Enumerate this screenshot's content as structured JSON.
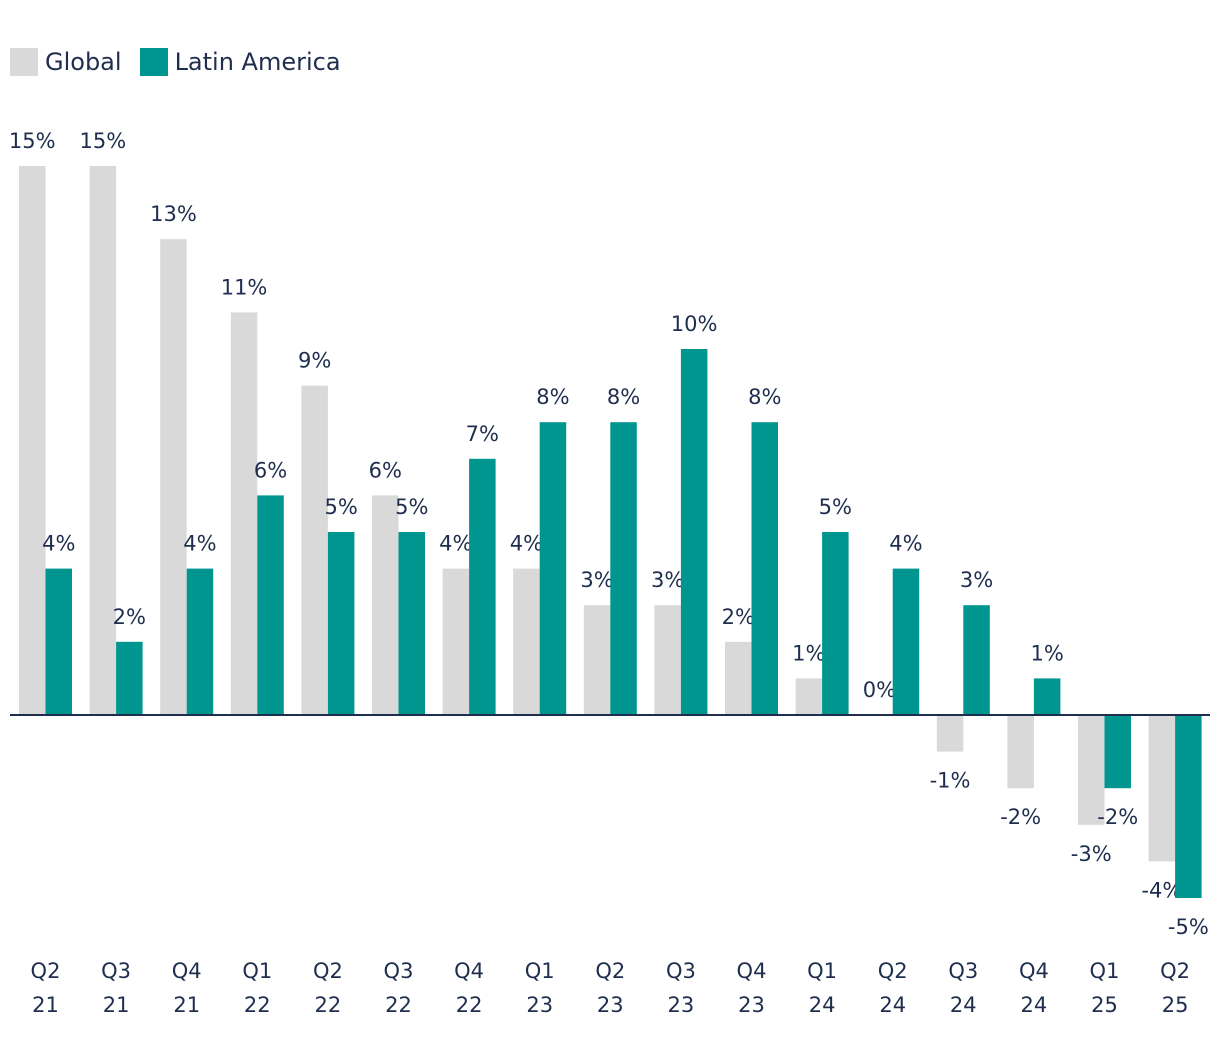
{
  "chart_data": {
    "type": "bar",
    "title": "",
    "xlabel": "",
    "ylabel": "",
    "ylim": [
      -5,
      15
    ],
    "categories": [
      [
        "Q2",
        "21"
      ],
      [
        "Q3",
        "21"
      ],
      [
        "Q4",
        "21"
      ],
      [
        "Q1",
        "22"
      ],
      [
        "Q2",
        "22"
      ],
      [
        "Q3",
        "22"
      ],
      [
        "Q4",
        "22"
      ],
      [
        "Q1",
        "23"
      ],
      [
        "Q2",
        "23"
      ],
      [
        "Q3",
        "23"
      ],
      [
        "Q4",
        "23"
      ],
      [
        "Q1",
        "24"
      ],
      [
        "Q2",
        "24"
      ],
      [
        "Q3",
        "24"
      ],
      [
        "Q4",
        "24"
      ],
      [
        "Q1",
        "25"
      ],
      [
        "Q2",
        "25"
      ]
    ],
    "series": [
      {
        "name": "Global",
        "color": "#d9d9d9",
        "values": [
          15,
          15,
          13,
          11,
          9,
          6,
          4,
          4,
          3,
          3,
          2,
          1,
          0,
          -1,
          -2,
          -3,
          -4
        ],
        "labels": [
          "15%",
          "15%",
          "13%",
          "11%",
          "9%",
          "6%",
          "4%",
          "4%",
          "3%",
          "3%",
          "2%",
          "1%",
          "0%",
          "-1%",
          "-2%",
          "-3%",
          "-4%"
        ]
      },
      {
        "name": "Latin America",
        "color": "#00968f",
        "values": [
          4,
          2,
          4,
          6,
          5,
          5,
          7,
          8,
          8,
          10,
          8,
          5,
          4,
          3,
          1,
          -2,
          -5
        ],
        "labels": [
          "4%",
          "2%",
          "4%",
          "6%",
          "5%",
          "5%",
          "7%",
          "8%",
          "8%",
          "10%",
          "8%",
          "5%",
          "4%",
          "3%",
          "1%",
          "-2%",
          "-5%"
        ]
      }
    ],
    "legend": {
      "position": "top-left"
    },
    "axis_color": "#1f2d4e",
    "grid": false
  }
}
